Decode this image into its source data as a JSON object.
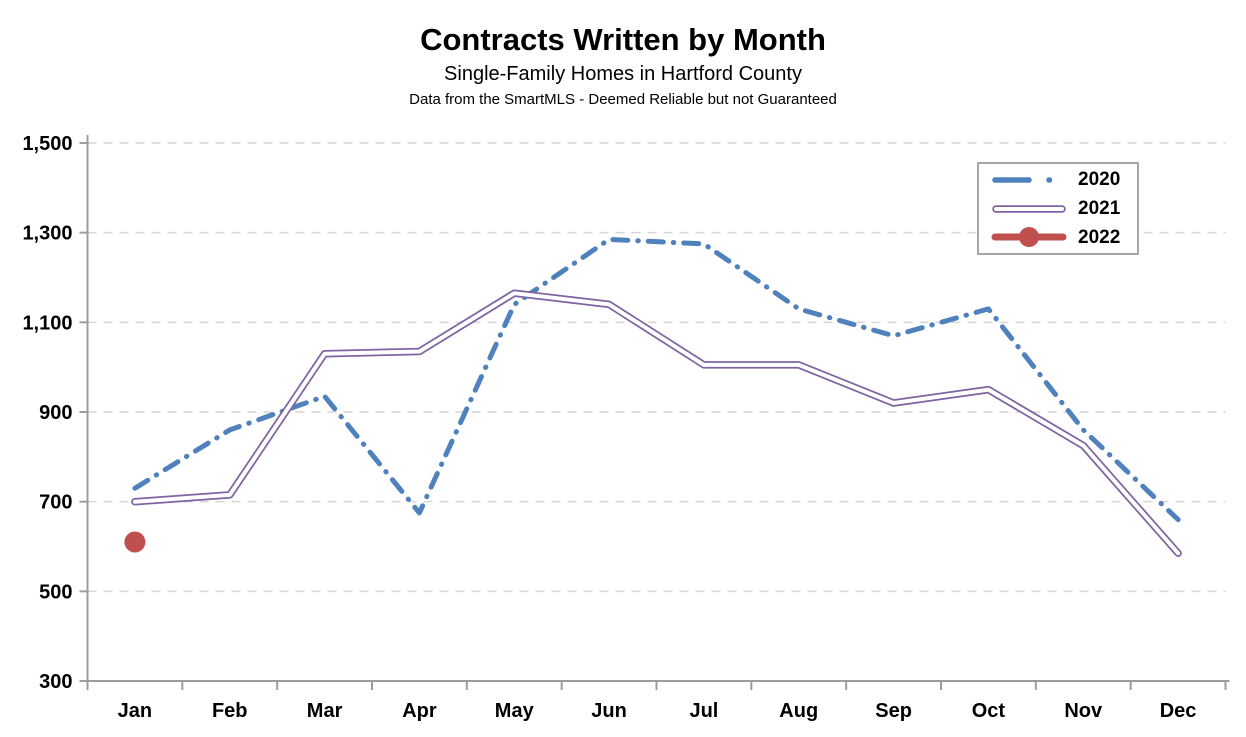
{
  "header": {
    "title": "Contracts Written by Month",
    "subtitle": "Single-Family Homes in Hartford County",
    "disclaimer": "Data from the SmartMLS - Deemed Reliable but not Guaranteed"
  },
  "colors": {
    "series_2020": "#4F81BD",
    "series_2021": "#8064A2",
    "series_2022": "#C0504D",
    "gridline": "#d6d6d6",
    "axis": "#9c9c9c",
    "text": "#000000",
    "legend_border": "#a6a6a6",
    "background": "#ffffff"
  },
  "chart_data": {
    "type": "line",
    "title": "Contracts Written by Month",
    "subtitle": "Single-Family Homes in Hartford County",
    "footnote": "Data from the SmartMLS - Deemed Reliable but not Guaranteed",
    "xlabel": "",
    "ylabel": "",
    "categories": [
      "Jan",
      "Feb",
      "Mar",
      "Apr",
      "May",
      "Jun",
      "Jul",
      "Aug",
      "Sep",
      "Oct",
      "Nov",
      "Dec"
    ],
    "series": [
      {
        "name": "2020",
        "color": "#4F81BD",
        "style": "dash-dot",
        "values": [
          730,
          860,
          935,
          675,
          1140,
          1285,
          1275,
          1130,
          1070,
          1130,
          860,
          660
        ]
      },
      {
        "name": "2021",
        "color": "#8064A2",
        "style": "double-line",
        "values": [
          700,
          715,
          1030,
          1035,
          1165,
          1140,
          1005,
          1005,
          920,
          950,
          825,
          585
        ]
      },
      {
        "name": "2022",
        "color": "#C0504D",
        "style": "solid-marker",
        "values": [
          610,
          null,
          null,
          null,
          null,
          null,
          null,
          null,
          null,
          null,
          null,
          null
        ]
      }
    ],
    "ylim": [
      300,
      1500
    ],
    "ytick_step": 200,
    "ytick_labels": [
      "300",
      "500",
      "700",
      "900",
      "1,100",
      "1,300",
      "1,500"
    ],
    "grid": "dashed-horizontal",
    "legend_position": "top-right"
  }
}
